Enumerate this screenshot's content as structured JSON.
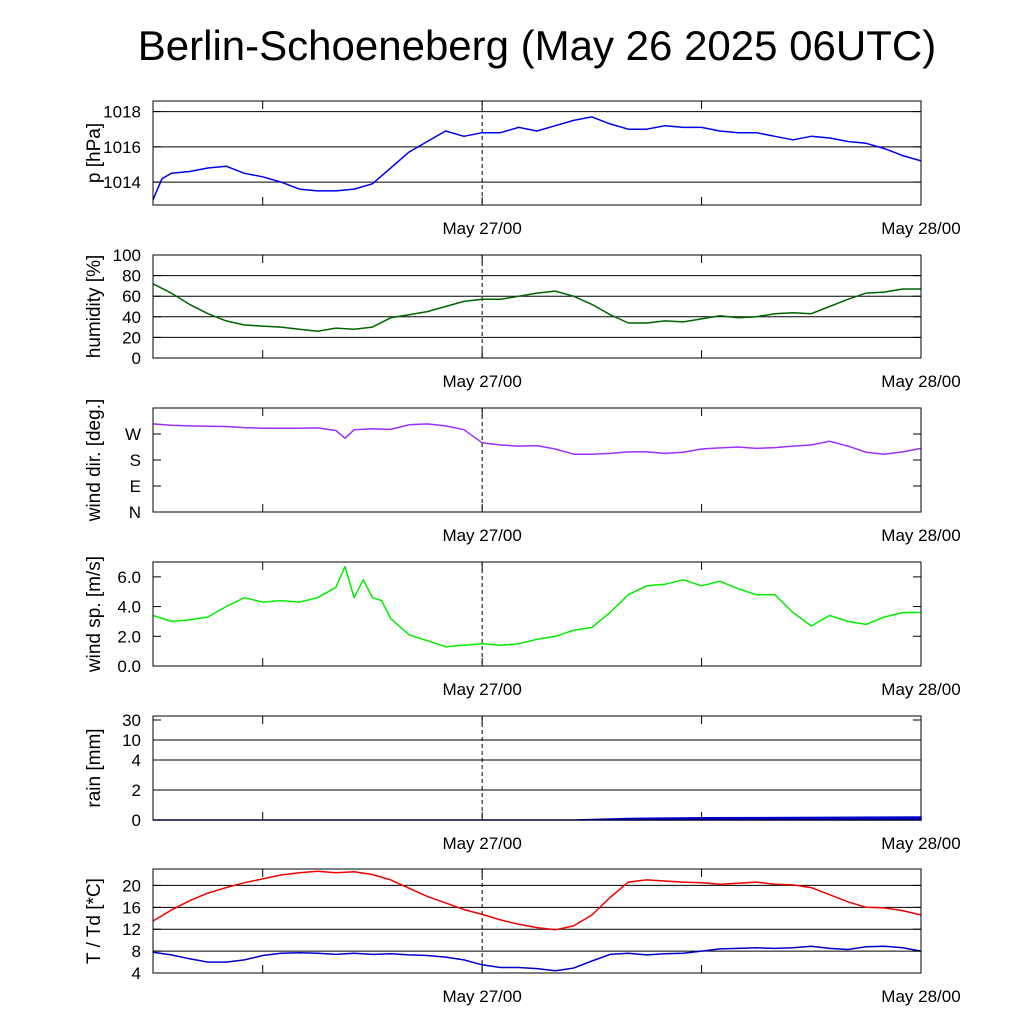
{
  "title": "Berlin-Schoeneberg (May 26 2025 06UTC)",
  "x_tick_labels": [
    "May 27/00",
    "May 28/00"
  ],
  "chart_data": [
    {
      "id": "pressure",
      "type": "line",
      "ylabel": "p [hPa]",
      "ylim": [
        1012.7,
        1018.6
      ],
      "yticks": [
        1014,
        1016,
        1018
      ],
      "ytick_labels": [
        "1014",
        "1016",
        "1018"
      ],
      "hgrid": [
        1014,
        1016,
        1018
      ],
      "grid": true,
      "x": [
        "2025-05-26 06:00",
        "2025-05-26 06:30",
        "2025-05-26 07:00",
        "2025-05-26 08:00",
        "2025-05-26 09:00",
        "2025-05-26 10:00",
        "2025-05-26 11:00",
        "2025-05-26 12:00",
        "2025-05-26 13:00",
        "2025-05-26 14:00",
        "2025-05-26 15:00",
        "2025-05-26 16:00",
        "2025-05-26 17:00",
        "2025-05-26 18:00",
        "2025-05-26 19:00",
        "2025-05-26 20:00",
        "2025-05-26 21:00",
        "2025-05-26 22:00",
        "2025-05-26 23:00",
        "2025-05-27 00:00",
        "2025-05-27 01:00",
        "2025-05-27 02:00",
        "2025-05-27 03:00",
        "2025-05-27 04:00",
        "2025-05-27 05:00",
        "2025-05-27 06:00",
        "2025-05-27 07:00",
        "2025-05-27 08:00",
        "2025-05-27 09:00",
        "2025-05-27 10:00",
        "2025-05-27 11:00",
        "2025-05-27 12:00",
        "2025-05-27 13:00",
        "2025-05-27 14:00",
        "2025-05-27 15:00",
        "2025-05-27 16:00",
        "2025-05-27 17:00",
        "2025-05-27 18:00",
        "2025-05-27 19:00",
        "2025-05-27 20:00",
        "2025-05-27 21:00",
        "2025-05-27 22:00",
        "2025-05-27 23:00",
        "2025-05-28 00:00"
      ],
      "series": [
        {
          "color": "#0000ee",
          "values": [
            1013.0,
            1014.2,
            1014.5,
            1014.6,
            1014.8,
            1014.9,
            1014.5,
            1014.3,
            1014.0,
            1013.6,
            1013.5,
            1013.5,
            1013.6,
            1013.9,
            1014.8,
            1015.7,
            1016.3,
            1016.9,
            1016.6,
            1016.8,
            1016.8,
            1017.1,
            1016.9,
            1017.2,
            1017.5,
            1017.7,
            1017.3,
            1017.0,
            1017.0,
            1017.2,
            1017.1,
            1017.1,
            1016.9,
            1016.8,
            1016.8,
            1016.6,
            1016.4,
            1016.6,
            1016.5,
            1016.3,
            1016.2,
            1015.9,
            1015.5,
            1015.2
          ]
        }
      ]
    },
    {
      "id": "humidity",
      "type": "line",
      "ylabel": "humidity [%]",
      "ylim": [
        0,
        100
      ],
      "yticks": [
        0,
        20,
        40,
        60,
        80,
        100
      ],
      "ytick_labels": [
        "0",
        "20",
        "40",
        "60",
        "80",
        "100"
      ],
      "hgrid": [
        20,
        40,
        60,
        80
      ],
      "grid": true,
      "x": [
        "2025-05-26 06:00",
        "2025-05-26 07:00",
        "2025-05-26 08:00",
        "2025-05-26 09:00",
        "2025-05-26 10:00",
        "2025-05-26 11:00",
        "2025-05-26 12:00",
        "2025-05-26 13:00",
        "2025-05-26 14:00",
        "2025-05-26 15:00",
        "2025-05-26 16:00",
        "2025-05-26 17:00",
        "2025-05-26 18:00",
        "2025-05-26 19:00",
        "2025-05-26 20:00",
        "2025-05-26 21:00",
        "2025-05-26 22:00",
        "2025-05-26 23:00",
        "2025-05-27 00:00",
        "2025-05-27 01:00",
        "2025-05-27 02:00",
        "2025-05-27 03:00",
        "2025-05-27 04:00",
        "2025-05-27 05:00",
        "2025-05-27 06:00",
        "2025-05-27 07:00",
        "2025-05-27 08:00",
        "2025-05-27 09:00",
        "2025-05-27 10:00",
        "2025-05-27 11:00",
        "2025-05-27 12:00",
        "2025-05-27 13:00",
        "2025-05-27 14:00",
        "2025-05-27 15:00",
        "2025-05-27 16:00",
        "2025-05-27 17:00",
        "2025-05-27 18:00",
        "2025-05-27 19:00",
        "2025-05-27 20:00",
        "2025-05-27 21:00",
        "2025-05-27 22:00",
        "2025-05-27 23:00",
        "2025-05-28 00:00"
      ],
      "series": [
        {
          "color": "#006400",
          "values": [
            72,
            63,
            52,
            43,
            36,
            32,
            31,
            30,
            28,
            26,
            29,
            28,
            30,
            39,
            42,
            45,
            50,
            55,
            57,
            57,
            60,
            63,
            65,
            60,
            52,
            42,
            34,
            34,
            36,
            35,
            38,
            41,
            39,
            40,
            43,
            44,
            43,
            50,
            57,
            63,
            64,
            67,
            67
          ]
        }
      ]
    },
    {
      "id": "wind_direction",
      "type": "line",
      "ylabel": "wind dir. [deg.]",
      "ylim": [
        0,
        360
      ],
      "yticks": [
        0,
        90,
        180,
        270
      ],
      "ytick_labels": [
        "N",
        "E",
        "S",
        "W"
      ],
      "hgrid": [],
      "grid": false,
      "x": [
        "2025-05-26 06:00",
        "2025-05-26 07:00",
        "2025-05-26 08:00",
        "2025-05-26 09:00",
        "2025-05-26 10:00",
        "2025-05-26 11:00",
        "2025-05-26 12:00",
        "2025-05-26 13:00",
        "2025-05-26 14:00",
        "2025-05-26 15:00",
        "2025-05-26 16:00",
        "2025-05-26 16:30",
        "2025-05-26 17:00",
        "2025-05-26 18:00",
        "2025-05-26 19:00",
        "2025-05-26 20:00",
        "2025-05-26 21:00",
        "2025-05-26 22:00",
        "2025-05-26 23:00",
        "2025-05-27 00:00",
        "2025-05-27 01:00",
        "2025-05-27 02:00",
        "2025-05-27 03:00",
        "2025-05-27 04:00",
        "2025-05-27 05:00",
        "2025-05-27 06:00",
        "2025-05-27 07:00",
        "2025-05-27 08:00",
        "2025-05-27 09:00",
        "2025-05-27 10:00",
        "2025-05-27 11:00",
        "2025-05-27 12:00",
        "2025-05-27 13:00",
        "2025-05-27 14:00",
        "2025-05-27 15:00",
        "2025-05-27 16:00",
        "2025-05-27 17:00",
        "2025-05-27 18:00",
        "2025-05-27 19:00",
        "2025-05-27 20:00",
        "2025-05-27 21:00",
        "2025-05-27 22:00",
        "2025-05-27 23:00",
        "2025-05-28 00:00"
      ],
      "series": [
        {
          "color": "#9b30ff",
          "values": [
            305,
            300,
            298,
            297,
            296,
            292,
            290,
            290,
            290,
            291,
            282,
            255,
            285,
            288,
            286,
            302,
            305,
            298,
            285,
            240,
            232,
            228,
            230,
            218,
            200,
            200,
            203,
            208,
            208,
            203,
            207,
            218,
            222,
            225,
            220,
            223,
            228,
            232,
            245,
            228,
            207,
            200,
            208,
            220
          ]
        }
      ]
    },
    {
      "id": "wind_speed",
      "type": "line",
      "ylabel": "wind sp. [m/s]",
      "ylim": [
        0,
        7.0
      ],
      "yticks": [
        0,
        2,
        4,
        6
      ],
      "ytick_labels": [
        "0.0",
        "2.0",
        "4.0",
        "6.0"
      ],
      "hgrid": [],
      "grid": false,
      "x": [
        "2025-05-26 06:00",
        "2025-05-26 07:00",
        "2025-05-26 08:00",
        "2025-05-26 09:00",
        "2025-05-26 10:00",
        "2025-05-26 11:00",
        "2025-05-26 12:00",
        "2025-05-26 13:00",
        "2025-05-26 14:00",
        "2025-05-26 15:00",
        "2025-05-26 16:00",
        "2025-05-26 16:30",
        "2025-05-26 17:00",
        "2025-05-26 17:30",
        "2025-05-26 18:00",
        "2025-05-26 18:30",
        "2025-05-26 19:00",
        "2025-05-26 20:00",
        "2025-05-26 21:00",
        "2025-05-26 22:00",
        "2025-05-26 23:00",
        "2025-05-27 00:00",
        "2025-05-27 01:00",
        "2025-05-27 02:00",
        "2025-05-27 03:00",
        "2025-05-27 04:00",
        "2025-05-27 05:00",
        "2025-05-27 06:00",
        "2025-05-27 07:00",
        "2025-05-27 08:00",
        "2025-05-27 09:00",
        "2025-05-27 10:00",
        "2025-05-27 11:00",
        "2025-05-27 12:00",
        "2025-05-27 13:00",
        "2025-05-27 14:00",
        "2025-05-27 15:00",
        "2025-05-27 16:00",
        "2025-05-27 17:00",
        "2025-05-27 18:00",
        "2025-05-27 19:00",
        "2025-05-27 20:00",
        "2025-05-27 21:00",
        "2025-05-27 22:00",
        "2025-05-27 23:00",
        "2025-05-28 00:00"
      ],
      "series": [
        {
          "color": "#00ee00",
          "values": [
            3.4,
            3.0,
            3.1,
            3.3,
            4.0,
            4.6,
            4.3,
            4.4,
            4.3,
            4.6,
            5.3,
            6.7,
            4.6,
            5.8,
            4.6,
            4.4,
            3.2,
            2.1,
            1.7,
            1.3,
            1.4,
            1.5,
            1.4,
            1.5,
            1.8,
            2.0,
            2.4,
            2.6,
            3.6,
            4.8,
            5.4,
            5.5,
            5.8,
            5.4,
            5.7,
            5.2,
            4.8,
            4.8,
            3.6,
            2.7,
            3.4,
            3.0,
            2.8,
            3.3,
            3.6,
            3.6
          ]
        }
      ]
    },
    {
      "id": "rain",
      "type": "area",
      "ylabel": "rain [mm]",
      "ylim": [
        0,
        30
      ],
      "yticks": [
        0,
        2,
        4,
        10,
        30
      ],
      "ytick_labels": [
        "0",
        "2",
        "4",
        "10",
        "30"
      ],
      "hgrid": [
        2,
        4,
        10
      ],
      "grid": true,
      "x": [
        "2025-05-26 06:00",
        "2025-05-27 00:00",
        "2025-05-27 05:00",
        "2025-05-27 08:00",
        "2025-05-27 12:00",
        "2025-05-28 00:00"
      ],
      "series": [
        {
          "color": "#0000cd",
          "values": [
            0,
            0,
            0,
            0.1,
            0.15,
            0.2
          ]
        }
      ]
    },
    {
      "id": "temperature",
      "type": "line",
      "ylabel": "T / Td [*C]",
      "ylim": [
        4,
        23
      ],
      "yticks": [
        4,
        8,
        12,
        16,
        20
      ],
      "ytick_labels": [
        "4",
        "8",
        "12",
        "16",
        "20"
      ],
      "hgrid": [
        8,
        12,
        16,
        20
      ],
      "grid": true,
      "x": [
        "2025-05-26 06:00",
        "2025-05-26 07:00",
        "2025-05-26 08:00",
        "2025-05-26 09:00",
        "2025-05-26 10:00",
        "2025-05-26 11:00",
        "2025-05-26 12:00",
        "2025-05-26 13:00",
        "2025-05-26 14:00",
        "2025-05-26 15:00",
        "2025-05-26 16:00",
        "2025-05-26 17:00",
        "2025-05-26 18:00",
        "2025-05-26 19:00",
        "2025-05-26 20:00",
        "2025-05-26 21:00",
        "2025-05-26 22:00",
        "2025-05-26 23:00",
        "2025-05-27 00:00",
        "2025-05-27 01:00",
        "2025-05-27 02:00",
        "2025-05-27 03:00",
        "2025-05-27 04:00",
        "2025-05-27 05:00",
        "2025-05-27 06:00",
        "2025-05-27 07:00",
        "2025-05-27 08:00",
        "2025-05-27 09:00",
        "2025-05-27 10:00",
        "2025-05-27 11:00",
        "2025-05-27 12:00",
        "2025-05-27 13:00",
        "2025-05-27 14:00",
        "2025-05-27 15:00",
        "2025-05-27 16:00",
        "2025-05-27 17:00",
        "2025-05-27 18:00",
        "2025-05-27 19:00",
        "2025-05-27 20:00",
        "2025-05-27 21:00",
        "2025-05-27 22:00",
        "2025-05-27 23:00",
        "2025-05-28 00:00"
      ],
      "series": [
        {
          "color": "#ee0000",
          "values": [
            13.5,
            15.5,
            17.2,
            18.6,
            19.6,
            20.5,
            21.2,
            21.9,
            22.3,
            22.6,
            22.3,
            22.5,
            22.0,
            21.0,
            19.5,
            18.0,
            16.8,
            15.6,
            14.7,
            13.7,
            12.9,
            12.3,
            11.9,
            12.6,
            14.6,
            17.8,
            20.6,
            21.0,
            20.8,
            20.6,
            20.5,
            20.2,
            20.4,
            20.6,
            20.2,
            20.1,
            19.6,
            18.3,
            17.0,
            16.0,
            15.9,
            15.4,
            14.6
          ]
        },
        {
          "color": "#0000cd",
          "values": [
            7.8,
            7.3,
            6.6,
            6.0,
            6.0,
            6.4,
            7.2,
            7.6,
            7.7,
            7.6,
            7.4,
            7.6,
            7.4,
            7.5,
            7.3,
            7.2,
            6.9,
            6.4,
            5.5,
            5.0,
            5.0,
            4.8,
            4.4,
            4.9,
            6.2,
            7.4,
            7.6,
            7.3,
            7.5,
            7.6,
            8.0,
            8.4,
            8.5,
            8.6,
            8.5,
            8.6,
            8.9,
            8.5,
            8.3,
            8.8,
            8.9,
            8.6,
            8.0
          ]
        }
      ]
    }
  ]
}
